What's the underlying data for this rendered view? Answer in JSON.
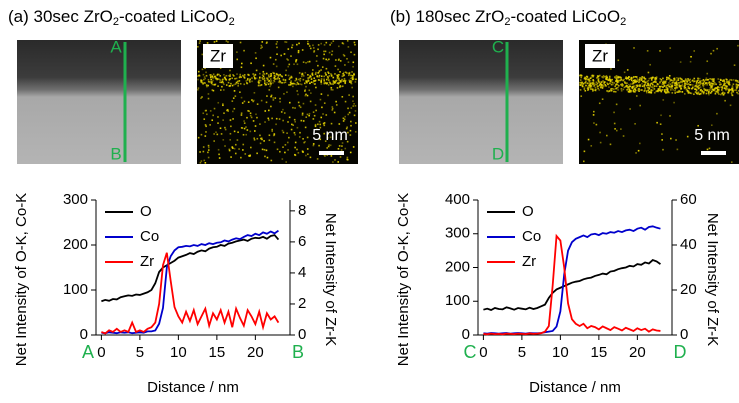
{
  "chart_data": [
    {
      "type": "line",
      "title_parts": [
        "(a) 30sec ZrO",
        "2",
        "-coated LiCoO",
        "2"
      ],
      "markers": [
        "A",
        "B"
      ],
      "map_label": "Zr",
      "scale_bar": "5 nm",
      "xlabel": "Distance / nm",
      "ylabel": "Net Intensity of O-K, Co-K",
      "y2label": "Net Intensity of Zr-K",
      "x": [
        0,
        0.5,
        1,
        1.5,
        2,
        2.5,
        3,
        3.5,
        4,
        4.5,
        5,
        5.5,
        6,
        6.5,
        7,
        7.5,
        8,
        8.5,
        9,
        9.5,
        10,
        10.5,
        11,
        11.5,
        12,
        12.5,
        13,
        13.5,
        14,
        14.5,
        15,
        15.5,
        16,
        16.5,
        17,
        17.5,
        18,
        18.5,
        19,
        19.5,
        20,
        20.5,
        21,
        21.5,
        22,
        22.5,
        23
      ],
      "xlim": [
        -0.7,
        24.5
      ],
      "xticks": [
        0,
        5,
        10,
        15,
        20
      ],
      "ylim": [
        0,
        300
      ],
      "yticks": [
        0,
        100,
        200,
        300
      ],
      "y2lim": [
        0,
        8.7
      ],
      "y2ticks": [
        0,
        2,
        4,
        6,
        8
      ],
      "series": [
        {
          "name": "O",
          "color": "#000000",
          "values": [
            75,
            78,
            76,
            80,
            79,
            84,
            86,
            88,
            87,
            90,
            89,
            92,
            95,
            100,
            115,
            140,
            150,
            155,
            160,
            165,
            172,
            175,
            178,
            182,
            180,
            185,
            188,
            186,
            192,
            195,
            196,
            200,
            198,
            203,
            205,
            208,
            210,
            212,
            209,
            214,
            216,
            215,
            218,
            214,
            220,
            222,
            212
          ]
        },
        {
          "name": "Co",
          "color": "#0000cc",
          "values": [
            5,
            4,
            6,
            5,
            4,
            6,
            5,
            6,
            4,
            5,
            6,
            5,
            8,
            8,
            10,
            25,
            60,
            150,
            175,
            188,
            195,
            196,
            198,
            197,
            200,
            198,
            202,
            200,
            204,
            202,
            205,
            206,
            210,
            208,
            212,
            215,
            213,
            218,
            222,
            220,
            225,
            222,
            228,
            225,
            230,
            226,
            232
          ]
        },
        {
          "name": "Zr",
          "color": "#ff0000",
          "axis": "y2",
          "values": [
            0.2,
            0.1,
            0.3,
            0.2,
            0.4,
            0.2,
            0.3,
            0.2,
            0.8,
            0.2,
            0.3,
            0.2,
            0.4,
            0.5,
            0.8,
            2,
            4.5,
            5.3,
            3.5,
            1.8,
            1.2,
            0.8,
            1.5,
            0.9,
            1.6,
            0.7,
            1.2,
            1.7,
            0.6,
            1.4,
            1.0,
            1.6,
            0.8,
            1.5,
            0.5,
            1.7,
            1.1,
            0.6,
            1.6,
            1.2,
            0.7,
            1.5,
            0.5,
            1.4,
            1.0,
            1.2,
            0.8
          ]
        }
      ]
    },
    {
      "type": "line",
      "title_parts": [
        "(b) 180sec ZrO",
        "2",
        "-coated LiCoO",
        "2"
      ],
      "markers": [
        "C",
        "D"
      ],
      "map_label": "Zr",
      "scale_bar": "5 nm",
      "xlabel": "Distance / nm",
      "ylabel": "Net Intensity of O-K, Co-K",
      "y2label": "Net Intensity of Zr-K",
      "x": [
        0,
        0.5,
        1,
        1.5,
        2,
        2.5,
        3,
        3.5,
        4,
        4.5,
        5,
        5.5,
        6,
        6.5,
        7,
        7.5,
        8,
        8.5,
        9,
        9.5,
        10,
        10.5,
        11,
        11.5,
        12,
        12.5,
        13,
        13.5,
        14,
        14.5,
        15,
        15.5,
        16,
        16.5,
        17,
        17.5,
        18,
        18.5,
        19,
        19.5,
        20,
        20.5,
        21,
        21.5,
        22,
        22.5,
        23
      ],
      "xlim": [
        -0.7,
        24.5
      ],
      "xticks": [
        0,
        5,
        10,
        15,
        20
      ],
      "ylim": [
        0,
        400
      ],
      "yticks": [
        0,
        100,
        200,
        300,
        400
      ],
      "y2lim": [
        0,
        60
      ],
      "y2ticks": [
        0,
        20,
        40,
        60
      ],
      "series": [
        {
          "name": "O",
          "color": "#000000",
          "values": [
            75,
            78,
            74,
            80,
            77,
            76,
            82,
            79,
            75,
            80,
            78,
            76,
            81,
            77,
            80,
            85,
            90,
            110,
            125,
            135,
            140,
            145,
            150,
            155,
            158,
            160,
            165,
            168,
            170,
            175,
            178,
            182,
            180,
            188,
            190,
            195,
            198,
            200,
            205,
            203,
            210,
            208,
            215,
            212,
            222,
            218,
            210
          ]
        },
        {
          "name": "Co",
          "color": "#0000cc",
          "values": [
            5,
            4,
            6,
            5,
            4,
            5,
            6,
            4,
            5,
            6,
            5,
            4,
            6,
            5,
            5,
            6,
            8,
            10,
            12,
            25,
            70,
            180,
            250,
            275,
            285,
            290,
            295,
            290,
            298,
            300,
            296,
            302,
            300,
            305,
            303,
            308,
            305,
            310,
            312,
            308,
            315,
            318,
            312,
            320,
            322,
            318,
            315
          ]
        },
        {
          "name": "Zr",
          "color": "#ff0000",
          "axis": "y2",
          "values": [
            0.5,
            0.3,
            0.6,
            0.4,
            0.5,
            0.3,
            0.6,
            0.5,
            0.4,
            0.6,
            0.5,
            0.4,
            0.7,
            0.5,
            0.6,
            0.8,
            1.5,
            4,
            22,
            44,
            42,
            30,
            14,
            7,
            5,
            4,
            5,
            3,
            4,
            3.5,
            2.5,
            3.8,
            3,
            2.2,
            3.5,
            2.8,
            2,
            3.2,
            2.5,
            1.8,
            3,
            2.2,
            2.8,
            1.5,
            2.5,
            2,
            1.8
          ]
        }
      ]
    }
  ]
}
